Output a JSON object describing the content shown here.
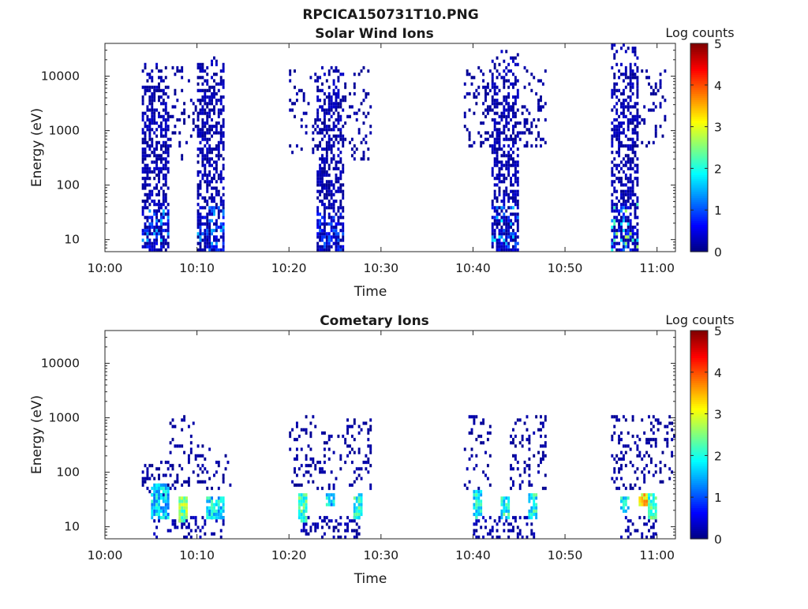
{
  "figure": {
    "title": "RPCICA150731T10.PNG"
  },
  "colormap": "jet",
  "chart_data": [
    {
      "type": "heatmap",
      "title": "Solar Wind Ions",
      "xlabel": "Time",
      "ylabel": "Energy (eV)",
      "y_scale": "log",
      "ylim": [
        6,
        40000
      ],
      "xlim": [
        "10:00",
        "11:02"
      ],
      "x_ticks": [
        "10:00",
        "10:10",
        "10:20",
        "10:30",
        "10:40",
        "10:50",
        "11:00"
      ],
      "y_ticks": [
        10,
        100,
        1000,
        10000
      ],
      "y_tick_labels": [
        "10",
        "100",
        "1000",
        "10000"
      ],
      "colorbar": {
        "label": "Log counts",
        "range": [
          0,
          5
        ],
        "ticks": [
          "0",
          "1",
          "2",
          "3",
          "4",
          "5"
        ]
      },
      "dense_bursts": [
        {
          "start": "10:04",
          "end": "10:07",
          "e_min": 6,
          "e_max": 20000,
          "density": 0.55,
          "core_value": 1.3
        },
        {
          "start": "10:10",
          "end": "10:13",
          "e_min": 6,
          "e_max": 22000,
          "density": 0.55,
          "core_value": 1.2
        },
        {
          "start": "10:23",
          "end": "10:26",
          "e_min": 6,
          "e_max": 15000,
          "density": 0.55,
          "core_value": 0.8
        },
        {
          "start": "10:42",
          "end": "10:45",
          "e_min": 6,
          "e_max": 30000,
          "density": 0.55,
          "core_value": 1.5
        },
        {
          "start": "10:55",
          "end": "10:58",
          "e_min": 6,
          "e_max": 35000,
          "density": 0.55,
          "core_value": 2.5
        }
      ],
      "sparse_regions": [
        {
          "start": "10:07",
          "end": "10:10",
          "e_min": 300,
          "e_max": 15000,
          "density": 0.12
        },
        {
          "start": "10:20",
          "end": "10:23",
          "e_min": 400,
          "e_max": 15000,
          "density": 0.15
        },
        {
          "start": "10:26",
          "end": "10:29",
          "e_min": 300,
          "e_max": 15000,
          "density": 0.15
        },
        {
          "start": "10:39",
          "end": "10:42",
          "e_min": 500,
          "e_max": 15000,
          "density": 0.18
        },
        {
          "start": "10:45",
          "end": "10:48",
          "e_min": 500,
          "e_max": 15000,
          "density": 0.18
        },
        {
          "start": "10:58",
          "end": "11:01",
          "e_min": 500,
          "e_max": 12000,
          "density": 0.15
        }
      ]
    },
    {
      "type": "heatmap",
      "title": "Cometary Ions",
      "xlabel": "Time",
      "ylabel": "Energy (eV)",
      "y_scale": "log",
      "ylim": [
        6,
        40000
      ],
      "xlim": [
        "10:00",
        "11:02"
      ],
      "x_ticks": [
        "10:00",
        "10:10",
        "10:20",
        "10:30",
        "10:40",
        "10:50",
        "11:00"
      ],
      "y_ticks": [
        10,
        100,
        1000,
        10000
      ],
      "y_tick_labels": [
        "10",
        "100",
        "1000",
        "10000"
      ],
      "colorbar": {
        "label": "Log counts",
        "range": [
          0,
          5
        ],
        "ticks": [
          "0",
          "1",
          "2",
          "3",
          "4",
          "5"
        ]
      },
      "core_bands": [
        {
          "start": "10:05",
          "end": "10:07",
          "e_min": 15,
          "e_max": 60,
          "value": 2.0
        },
        {
          "start": "10:08",
          "end": "10:09",
          "e_min": 12,
          "e_max": 35,
          "value": 2.8
        },
        {
          "start": "10:11",
          "end": "10:13",
          "e_min": 15,
          "e_max": 35,
          "value": 2.1
        },
        {
          "start": "10:21",
          "end": "10:22",
          "e_min": 12,
          "e_max": 40,
          "value": 2.5
        },
        {
          "start": "10:24",
          "end": "10:25",
          "e_min": 25,
          "e_max": 40,
          "value": 2.0
        },
        {
          "start": "10:27",
          "end": "10:28",
          "e_min": 15,
          "e_max": 40,
          "value": 2.4
        },
        {
          "start": "10:40",
          "end": "10:41",
          "e_min": 15,
          "e_max": 45,
          "value": 2.2
        },
        {
          "start": "10:43",
          "end": "10:44",
          "e_min": 15,
          "e_max": 35,
          "value": 2.3
        },
        {
          "start": "10:46",
          "end": "10:47",
          "e_min": 15,
          "e_max": 40,
          "value": 2.3
        },
        {
          "start": "10:56",
          "end": "10:57",
          "e_min": 20,
          "e_max": 35,
          "value": 2.2
        },
        {
          "start": "10:58",
          "end": "10:59",
          "e_min": 25,
          "e_max": 40,
          "value": 3.6
        },
        {
          "start": "10:59",
          "end": "11:00",
          "e_min": 15,
          "e_max": 40,
          "value": 2.6
        }
      ],
      "sparse_regions": [
        {
          "start": "10:04",
          "end": "10:08",
          "e_min": 40,
          "e_max": 150,
          "density": 0.25
        },
        {
          "start": "10:07",
          "end": "10:10",
          "e_min": 60,
          "e_max": 1000,
          "density": 0.18
        },
        {
          "start": "10:10",
          "end": "10:14",
          "e_min": 50,
          "e_max": 300,
          "density": 0.18
        },
        {
          "start": "10:20",
          "end": "10:23",
          "e_min": 50,
          "e_max": 1000,
          "density": 0.18
        },
        {
          "start": "10:23",
          "end": "10:26",
          "e_min": 50,
          "e_max": 500,
          "density": 0.15
        },
        {
          "start": "10:26",
          "end": "10:29",
          "e_min": 50,
          "e_max": 900,
          "density": 0.22
        },
        {
          "start": "10:39",
          "end": "10:42",
          "e_min": 50,
          "e_max": 1000,
          "density": 0.18
        },
        {
          "start": "10:44",
          "end": "10:48",
          "e_min": 50,
          "e_max": 1000,
          "density": 0.2
        },
        {
          "start": "10:55",
          "end": "11:02",
          "e_min": 50,
          "e_max": 1000,
          "density": 0.2
        }
      ],
      "low_energy_streaks": [
        {
          "start": "10:05",
          "end": "10:13",
          "e_min": 6,
          "e_max": 15,
          "density": 0.3
        },
        {
          "start": "10:21",
          "end": "10:28",
          "e_min": 6,
          "e_max": 15,
          "density": 0.3
        },
        {
          "start": "10:40",
          "end": "10:47",
          "e_min": 6,
          "e_max": 15,
          "density": 0.3
        },
        {
          "start": "10:56",
          "end": "11:00",
          "e_min": 6,
          "e_max": 15,
          "density": 0.3
        }
      ]
    }
  ]
}
